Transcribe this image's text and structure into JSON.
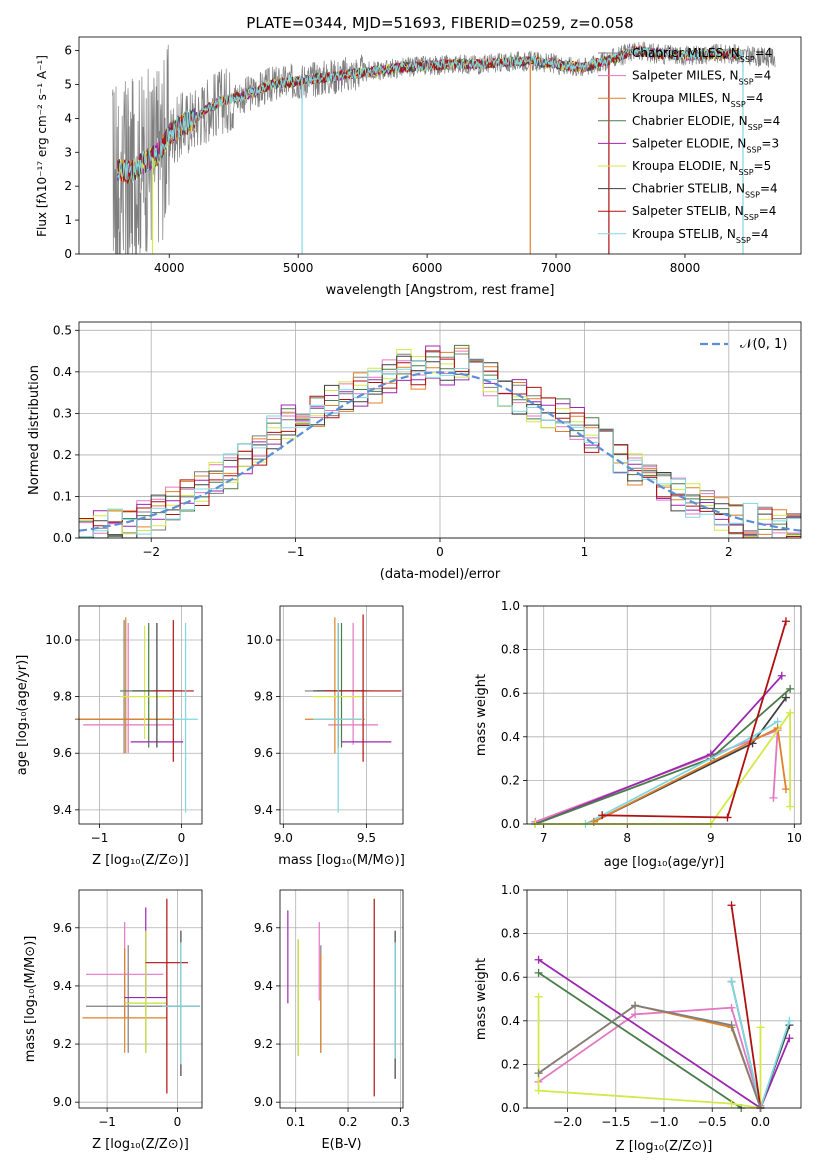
{
  "colors": {
    "chabrier_miles": "#7f7f7f",
    "salpeter_miles": "#e377c2",
    "kroupa_miles": "#e0802a",
    "chabrier_elodie": "#4a7d4a",
    "salpeter_elodie": "#9c27b0",
    "kroupa_elodie": "#d4e84a",
    "chabrier_stelib": "#404040",
    "salpeter_stelib": "#b01010",
    "kroupa_stelib": "#80d8e0",
    "normal": "#5b8fd6"
  },
  "chart_data": [
    {
      "id": "spectrum",
      "type": "line",
      "title": "PLATE=0344, MJD=51693, FIBERID=0259, z=0.058",
      "xlabel": "wavelength [Angstrom, rest frame]",
      "ylabel": "Flux [fλ10⁻¹⁷ erg cm⁻² s⁻¹ A⁻¹]",
      "xlim": [
        3300,
        8900
      ],
      "ylim": [
        0,
        6.4
      ],
      "xticks": [
        "4000",
        "5000",
        "6000",
        "7000",
        "8000"
      ],
      "yticks": [
        "0",
        "1",
        "2",
        "3",
        "4",
        "5",
        "6"
      ],
      "continuum": {
        "x": [
          3600,
          3700,
          3800,
          3900,
          4000,
          4100,
          4200,
          4300,
          4400,
          4500,
          4600,
          4800,
          5000,
          5200,
          5400,
          5600,
          5800,
          6000,
          6200,
          6400,
          6600,
          6800,
          7000,
          7200,
          7400,
          7600,
          7800,
          8000,
          8200,
          8400,
          8600
        ],
        "y": [
          2.5,
          2.4,
          2.7,
          2.9,
          3.5,
          3.8,
          4.0,
          4.3,
          4.5,
          4.6,
          4.7,
          5.0,
          5.1,
          5.2,
          5.3,
          5.4,
          5.5,
          5.55,
          5.6,
          5.6,
          5.65,
          5.7,
          5.6,
          5.5,
          5.7,
          6.0,
          5.9,
          5.85,
          5.9,
          5.9,
          5.8
        ]
      },
      "legend": [
        {
          "label": "Chabrier MILES, N",
          "n": "4",
          "color": "chabrier_miles"
        },
        {
          "label": "Salpeter MILES, N",
          "n": "4",
          "color": "salpeter_miles"
        },
        {
          "label": "Kroupa MILES, N",
          "n": "4",
          "color": "kroupa_miles"
        },
        {
          "label": "Chabrier ELODIE, N",
          "n": "4",
          "color": "chabrier_elodie"
        },
        {
          "label": "Salpeter ELODIE, N",
          "n": "3",
          "color": "salpeter_elodie"
        },
        {
          "label": "Kroupa ELODIE, N",
          "n": "5",
          "color": "kroupa_elodie"
        },
        {
          "label": "Chabrier STELIB, N",
          "n": "4",
          "color": "chabrier_stelib"
        },
        {
          "label": "Salpeter STELIB, N",
          "n": "4",
          "color": "salpeter_stelib"
        },
        {
          "label": "Kroupa STELIB, N",
          "n": "4",
          "color": "kroupa_stelib"
        }
      ],
      "legend_sub": "SSP"
    },
    {
      "id": "residuals",
      "type": "line",
      "xlabel": "(data-model)/error",
      "ylabel": "Normed distribution",
      "xlim": [
        -2.5,
        2.5
      ],
      "ylim": [
        0,
        0.52
      ],
      "xticks": [
        "−2",
        "−1",
        "0",
        "1",
        "2"
      ],
      "yticks": [
        "0.0",
        "0.1",
        "0.2",
        "0.3",
        "0.4",
        "0.5"
      ],
      "legend": "𝒩(0, 1)",
      "hist_centers": [
        -2.45,
        -2.35,
        -2.25,
        -2.15,
        -2.05,
        -1.95,
        -1.85,
        -1.75,
        -1.65,
        -1.55,
        -1.45,
        -1.35,
        -1.25,
        -1.15,
        -1.05,
        -0.95,
        -0.85,
        -0.75,
        -0.65,
        -0.55,
        -0.45,
        -0.35,
        -0.25,
        -0.15,
        -0.05,
        0.05,
        0.15,
        0.25,
        0.35,
        0.45,
        0.55,
        0.65,
        0.75,
        0.85,
        0.95,
        1.05,
        1.15,
        1.25,
        1.35,
        1.45,
        1.55,
        1.65,
        1.75,
        1.85,
        1.95,
        2.05,
        2.15,
        2.25,
        2.35,
        2.45
      ],
      "hist_ref": [
        0.02,
        0.025,
        0.03,
        0.035,
        0.045,
        0.06,
        0.08,
        0.1,
        0.12,
        0.14,
        0.16,
        0.19,
        0.22,
        0.25,
        0.28,
        0.3,
        0.31,
        0.33,
        0.34,
        0.36,
        0.37,
        0.39,
        0.42,
        0.4,
        0.42,
        0.41,
        0.42,
        0.4,
        0.38,
        0.36,
        0.34,
        0.32,
        0.31,
        0.29,
        0.27,
        0.25,
        0.22,
        0.2,
        0.17,
        0.15,
        0.13,
        0.11,
        0.09,
        0.07,
        0.06,
        0.05,
        0.04,
        0.03,
        0.025,
        0.02
      ]
    },
    {
      "id": "Z-age",
      "type": "scatter",
      "xlabel": "Z [log₁₀(Z/Z⊙)]",
      "ylabel": "age  [log₁₀(age/yr)]",
      "xlim": [
        -1.25,
        0.25
      ],
      "ylim": [
        9.35,
        10.12
      ],
      "xticks": [
        "−1",
        "0"
      ],
      "xtick_vals": [
        -1,
        0
      ],
      "yticks": [
        "9.4",
        "9.6",
        "9.8",
        "10.0"
      ],
      "ytick_vals": [
        9.4,
        9.6,
        9.8,
        10.0
      ],
      "points": [
        {
          "x": -0.7,
          "y": 9.72,
          "xerr": 0.6,
          "yerr_lo": 0.12,
          "yerr_hi": 0.35,
          "color": "chabrier_miles"
        },
        {
          "x": -0.65,
          "y": 9.7,
          "xerr": 0.55,
          "yerr_lo": 0.1,
          "yerr_hi": 0.36,
          "color": "salpeter_miles"
        },
        {
          "x": -0.68,
          "y": 9.72,
          "xerr": 0.6,
          "yerr_lo": 0.12,
          "yerr_hi": 0.36,
          "color": "kroupa_miles"
        },
        {
          "x": -0.4,
          "y": 9.82,
          "xerr": 0.35,
          "yerr_lo": 0.2,
          "yerr_hi": 0.24,
          "color": "chabrier_elodie"
        },
        {
          "x": -0.3,
          "y": 9.64,
          "xerr": 0.32,
          "yerr_lo": 0.0,
          "yerr_hi": 0.0,
          "color": "salpeter_elodie"
        },
        {
          "x": -0.45,
          "y": 9.8,
          "xerr": 0.3,
          "yerr_lo": 0.15,
          "yerr_hi": 0.25,
          "color": "kroupa_elodie"
        },
        {
          "x": -0.3,
          "y": 9.82,
          "xerr": 0.3,
          "yerr_lo": 0.2,
          "yerr_hi": 0.24,
          "color": "chabrier_stelib"
        },
        {
          "x": -0.1,
          "y": 9.82,
          "xerr": 0.25,
          "yerr_lo": 0.25,
          "yerr_hi": 0.25,
          "color": "salpeter_stelib"
        },
        {
          "x": 0.05,
          "y": 9.72,
          "xerr": 0.15,
          "yerr_lo": 0.33,
          "yerr_hi": 0.34,
          "color": "kroupa_stelib"
        }
      ]
    },
    {
      "id": "mass-age",
      "type": "scatter",
      "xlabel": "mass [log₁₀(M/M⊙)]",
      "xlim": [
        8.98,
        9.72
      ],
      "ylim": [
        9.35,
        10.12
      ],
      "xticks": [
        "9.0",
        "9.5"
      ],
      "xtick_vals": [
        9.0,
        9.5
      ],
      "yticks": [
        "9.4",
        "9.6",
        "9.8",
        "10.0"
      ],
      "ytick_vals": [
        9.4,
        9.6,
        9.8,
        10.0
      ],
      "points": [
        {
          "x": 9.33,
          "y": 9.82,
          "xerr": 0.2,
          "yerr_lo": 0.2,
          "yerr_hi": 0.24,
          "color": "chabrier_miles"
        },
        {
          "x": 9.42,
          "y": 9.7,
          "xerr": 0.15,
          "yerr_lo": 0.07,
          "yerr_hi": 0.36,
          "color": "salpeter_miles"
        },
        {
          "x": 9.31,
          "y": 9.72,
          "xerr": 0.18,
          "yerr_lo": 0.12,
          "yerr_hi": 0.36,
          "color": "kroupa_miles"
        },
        {
          "x": 9.35,
          "y": 9.82,
          "xerr": 0.15,
          "yerr_lo": 0.2,
          "yerr_hi": 0.24,
          "color": "chabrier_elodie"
        },
        {
          "x": 9.5,
          "y": 9.64,
          "xerr": 0.15,
          "yerr_lo": 0.0,
          "yerr_hi": 0.0,
          "color": "salpeter_elodie"
        },
        {
          "x": 9.33,
          "y": 9.8,
          "xerr": 0.15,
          "yerr_lo": 0.15,
          "yerr_hi": 0.25,
          "color": "kroupa_elodie"
        },
        {
          "x": 9.33,
          "y": 9.82,
          "xerr": 0.15,
          "yerr_lo": 0.2,
          "yerr_hi": 0.24,
          "color": "chabrier_stelib"
        },
        {
          "x": 9.48,
          "y": 9.82,
          "xerr": 0.23,
          "yerr_lo": 0.25,
          "yerr_hi": 0.27,
          "color": "salpeter_stelib"
        },
        {
          "x": 9.33,
          "y": 9.72,
          "xerr": 0.15,
          "yerr_lo": 0.33,
          "yerr_hi": 0.34,
          "color": "kroupa_stelib"
        }
      ]
    },
    {
      "id": "age-weight",
      "type": "line",
      "xlabel": "age  [log₁₀(age/yr)]",
      "ylabel": "mass weight",
      "xlim": [
        6.8,
        10.08
      ],
      "ylim": [
        0,
        1.0
      ],
      "xticks": [
        "7",
        "8",
        "9",
        "10"
      ],
      "xtick_vals": [
        7,
        8,
        9,
        10
      ],
      "yticks": [
        "0.0",
        "0.2",
        "0.4",
        "0.6",
        "0.8",
        "1.0"
      ],
      "ytick_vals": [
        0,
        0.2,
        0.4,
        0.6,
        0.8,
        1.0
      ],
      "series": [
        {
          "color": "salpeter_miles",
          "x": [
            6.9,
            9.8,
            9.75
          ],
          "y": [
            0.01,
            0.43,
            0.12
          ]
        },
        {
          "color": "salpeter_elodie",
          "x": [
            6.9,
            9.0,
            9.85
          ],
          "y": [
            0.0,
            0.32,
            0.68
          ]
        },
        {
          "color": "chabrier_elodie",
          "x": [
            6.9,
            9.0,
            9.95
          ],
          "y": [
            0.0,
            0.3,
            0.62
          ]
        },
        {
          "color": "chabrier_stelib",
          "x": [
            7.6,
            9.5,
            9.9
          ],
          "y": [
            0.01,
            0.37,
            0.58
          ]
        },
        {
          "color": "kroupa_stelib",
          "x": [
            7.5,
            9.5,
            9.8
          ],
          "y": [
            0.0,
            0.4,
            0.47
          ]
        },
        {
          "color": "kroupa_miles",
          "x": [
            7.6,
            9.8,
            9.9
          ],
          "y": [
            0.01,
            0.44,
            0.16
          ]
        },
        {
          "color": "kroupa_elodie",
          "x": [
            6.9,
            9.0,
            9.95,
            9.95
          ],
          "y": [
            0.0,
            0.0,
            0.51,
            0.08
          ]
        },
        {
          "color": "salpeter_stelib",
          "x": [
            7.7,
            9.2,
            9.9
          ],
          "y": [
            0.04,
            0.03,
            0.93
          ]
        }
      ]
    },
    {
      "id": "Z-mass",
      "type": "scatter",
      "xlabel": "Z [log₁₀(Z/Z⊙)]",
      "ylabel": "mass [log₁₀(M/M⊙)]",
      "xlim": [
        -1.4,
        0.35
      ],
      "ylim": [
        8.98,
        9.73
      ],
      "xticks": [
        "−1",
        "0"
      ],
      "xtick_vals": [
        -1,
        0
      ],
      "yticks": [
        "9.0",
        "9.2",
        "9.4",
        "9.6"
      ],
      "ytick_vals": [
        9.0,
        9.2,
        9.4,
        9.6
      ],
      "points": [
        {
          "x": -0.7,
          "y": 9.33,
          "xerr": 0.6,
          "yerr_lo": 0.16,
          "yerr_hi": 0.21,
          "color": "chabrier_miles"
        },
        {
          "x": -0.75,
          "y": 9.44,
          "xerr": 0.55,
          "yerr_lo": 0.15,
          "yerr_hi": 0.18,
          "color": "salpeter_miles"
        },
        {
          "x": -0.75,
          "y": 9.29,
          "xerr": 0.6,
          "yerr_lo": 0.12,
          "yerr_hi": 0.24,
          "color": "kroupa_miles"
        },
        {
          "x": -0.45,
          "y": 9.34,
          "xerr": 0.3,
          "yerr_lo": 0.17,
          "yerr_hi": 0.25,
          "color": "chabrier_elodie"
        },
        {
          "x": -0.45,
          "y": 9.36,
          "xerr": 0.3,
          "yerr_lo": 0.0,
          "yerr_hi": 0.31,
          "color": "salpeter_elodie"
        },
        {
          "x": -0.45,
          "y": 9.34,
          "xerr": 0.3,
          "yerr_lo": 0.17,
          "yerr_hi": 0.25,
          "color": "kroupa_elodie"
        },
        {
          "x": 0.05,
          "y": 9.33,
          "xerr": 0.27,
          "yerr_lo": 0.24,
          "yerr_hi": 0.26,
          "color": "chabrier_stelib"
        },
        {
          "x": -0.15,
          "y": 9.48,
          "xerr": 0.3,
          "yerr_lo": 0.45,
          "yerr_hi": 0.22,
          "color": "salpeter_stelib"
        },
        {
          "x": 0.05,
          "y": 9.33,
          "xerr": 0.27,
          "yerr_lo": 0.2,
          "yerr_hi": 0.22,
          "color": "kroupa_stelib"
        }
      ]
    },
    {
      "id": "ebv-mass",
      "type": "scatter",
      "xlabel": "E(B-V)",
      "xlim": [
        0.07,
        0.305
      ],
      "ylim": [
        8.98,
        9.73
      ],
      "xticks": [
        "0.1",
        "0.2",
        "0.3"
      ],
      "xtick_vals": [
        0.1,
        0.2,
        0.3
      ],
      "yticks": [
        "9.0",
        "9.2",
        "9.4",
        "9.6"
      ],
      "ytick_vals": [
        9.0,
        9.2,
        9.4,
        9.6
      ],
      "points": [
        {
          "x": 0.085,
          "y": 9.5,
          "yerr_lo": 0.16,
          "yerr_hi": 0.16,
          "color": "salpeter_elodie"
        },
        {
          "x": 0.105,
          "y": 9.36,
          "yerr_lo": 0.2,
          "yerr_hi": 0.2,
          "color": "chabrier_elodie"
        },
        {
          "x": 0.105,
          "y": 9.36,
          "yerr_lo": 0.2,
          "yerr_hi": 0.2,
          "color": "kroupa_elodie"
        },
        {
          "x": 0.145,
          "y": 9.45,
          "yerr_lo": 0.1,
          "yerr_hi": 0.17,
          "color": "salpeter_miles"
        },
        {
          "x": 0.148,
          "y": 9.34,
          "yerr_lo": 0.17,
          "yerr_hi": 0.2,
          "color": "chabrier_miles"
        },
        {
          "x": 0.148,
          "y": 9.34,
          "yerr_lo": 0.17,
          "yerr_hi": 0.17,
          "color": "kroupa_miles"
        },
        {
          "x": 0.25,
          "y": 9.36,
          "yerr_lo": 0.34,
          "yerr_hi": 0.34,
          "color": "salpeter_stelib"
        },
        {
          "x": 0.29,
          "y": 9.33,
          "yerr_lo": 0.25,
          "yerr_hi": 0.26,
          "color": "chabrier_stelib"
        },
        {
          "x": 0.29,
          "y": 9.35,
          "yerr_lo": 0.2,
          "yerr_hi": 0.2,
          "color": "kroupa_stelib"
        }
      ]
    },
    {
      "id": "Z-weight",
      "type": "line",
      "xlabel": "Z [log₁₀(Z/Z⊙)]",
      "ylabel": "mass weight",
      "xlim": [
        -2.42,
        0.42
      ],
      "ylim": [
        0,
        1.0
      ],
      "xticks": [
        "−2.0",
        "−1.5",
        "−1.0",
        "−0.5",
        "0.0"
      ],
      "xtick_vals": [
        -2.0,
        -1.5,
        -1.0,
        -0.5,
        0.0
      ],
      "yticks": [
        "0.0",
        "0.2",
        "0.4",
        "0.6",
        "0.8",
        "1.0"
      ],
      "ytick_vals": [
        0,
        0.2,
        0.4,
        0.6,
        0.8,
        1.0
      ],
      "series": [
        {
          "color": "salpeter_miles",
          "x": [
            -2.3,
            -1.3,
            -0.3,
            0.0
          ],
          "y": [
            0.12,
            0.43,
            0.46,
            0.01
          ]
        },
        {
          "color": "kroupa_miles",
          "x": [
            -2.3,
            -1.3,
            -0.3,
            0.0
          ],
          "y": [
            0.16,
            0.47,
            0.37,
            0.0
          ]
        },
        {
          "color": "salpeter_elodie",
          "x": [
            -2.3,
            0.0,
            0.3
          ],
          "y": [
            0.68,
            0.0,
            0.32
          ]
        },
        {
          "color": "chabrier_elodie",
          "x": [
            -2.3,
            -0.2
          ],
          "y": [
            0.62,
            0.0
          ]
        },
        {
          "color": "chabrier_stelib",
          "x": [
            -0.3,
            0.0,
            0.3
          ],
          "y": [
            0.58,
            0.0,
            0.38
          ]
        },
        {
          "color": "kroupa_stelib",
          "x": [
            -0.3,
            0.0,
            0.3
          ],
          "y": [
            0.58,
            0.0,
            0.4
          ]
        },
        {
          "color": "kroupa_elodie",
          "x": [
            -2.3,
            -2.3,
            -0.3,
            0.0,
            0.0
          ],
          "y": [
            0.51,
            0.08,
            0.02,
            0.0,
            0.37
          ]
        },
        {
          "color": "salpeter_stelib",
          "x": [
            -0.3,
            0.0
          ],
          "y": [
            0.93,
            0.0
          ]
        },
        {
          "color": "chabrier_miles",
          "x": [
            -2.3,
            -1.3,
            -0.3,
            0.0
          ],
          "y": [
            0.16,
            0.47,
            0.38,
            0.0
          ]
        }
      ]
    }
  ]
}
